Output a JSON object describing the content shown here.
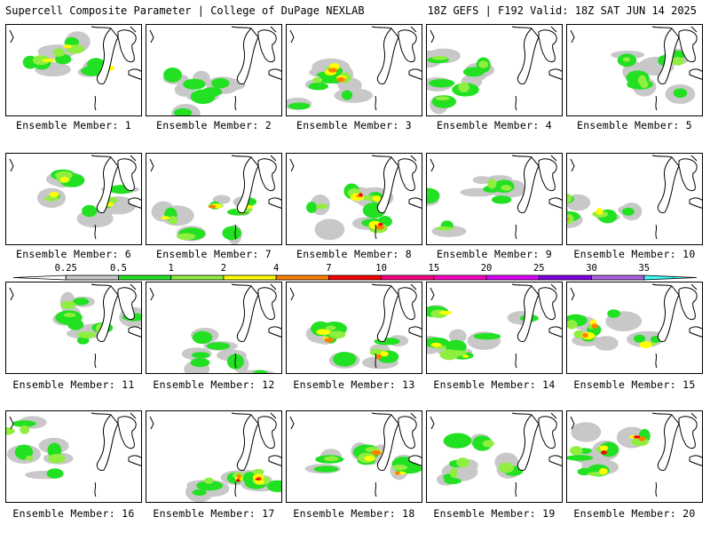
{
  "header": {
    "left": "Supercell Composite Parameter | College of DuPage NEXLAB",
    "right": "18Z GEFS | F192 Valid: 18Z SAT JUN 14 2025"
  },
  "legend": {
    "ticks": [
      "0.25",
      "0.5",
      "1",
      "2",
      "4",
      "7",
      "10",
      "15",
      "20",
      "25",
      "30",
      "35"
    ],
    "colors": [
      "#c8c8c8",
      "#22e022",
      "#90ee40",
      "#ffff00",
      "#ff8000",
      "#ff0000",
      "#ff0080",
      "#ff00c0",
      "#e000ff",
      "#8000e0",
      "#b060e0",
      "#40ffff"
    ]
  },
  "panels": [
    {
      "label": "Ensemble Member: 1",
      "intensity": 3
    },
    {
      "label": "Ensemble Member: 2",
      "intensity": 1
    },
    {
      "label": "Ensemble Member: 3",
      "intensity": 4
    },
    {
      "label": "Ensemble Member: 4",
      "intensity": 2
    },
    {
      "label": "Ensemble Member: 5",
      "intensity": 2
    },
    {
      "label": "Ensemble Member: 6",
      "intensity": 3
    },
    {
      "label": "Ensemble Member: 7",
      "intensity": 4
    },
    {
      "label": "Ensemble Member: 8",
      "intensity": 6
    },
    {
      "label": "Ensemble Member: 9",
      "intensity": 2
    },
    {
      "label": "Ensemble Member: 10",
      "intensity": 4
    },
    {
      "label": "Ensemble Member: 11",
      "intensity": 2
    },
    {
      "label": "Ensemble Member: 12",
      "intensity": 1
    },
    {
      "label": "Ensemble Member: 13",
      "intensity": 4
    },
    {
      "label": "Ensemble Member: 14",
      "intensity": 3
    },
    {
      "label": "Ensemble Member: 15",
      "intensity": 4
    },
    {
      "label": "Ensemble Member: 16",
      "intensity": 2
    },
    {
      "label": "Ensemble Member: 17",
      "intensity": 6
    },
    {
      "label": "Ensemble Member: 18",
      "intensity": 4
    },
    {
      "label": "Ensemble Member: 19",
      "intensity": 2
    },
    {
      "label": "Ensemble Member: 20",
      "intensity": 5
    }
  ]
}
